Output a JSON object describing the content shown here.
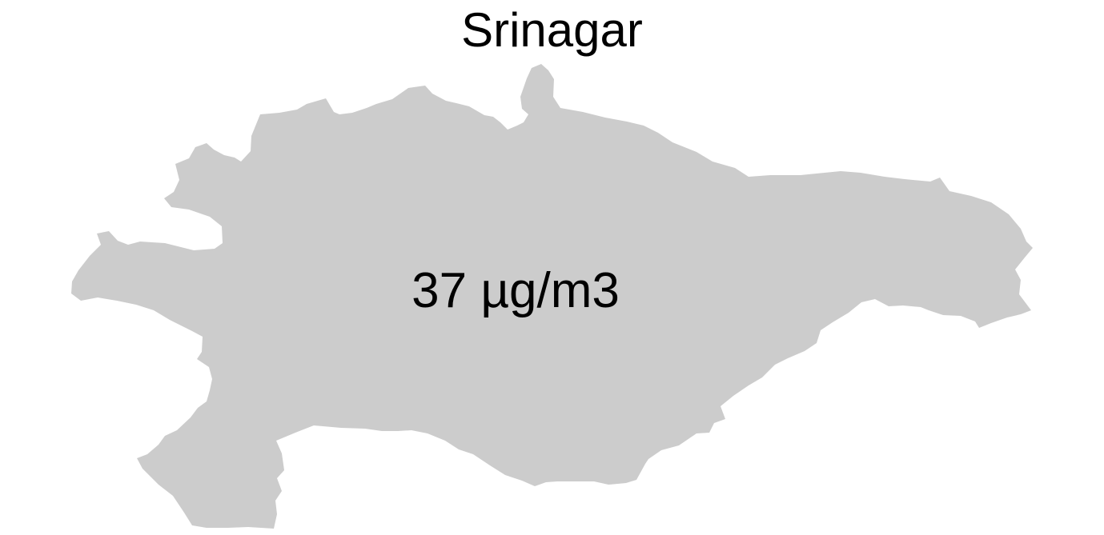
{
  "map": {
    "title": "Srinagar",
    "region_name": "Srinagar",
    "value_label": "37 µg/m3",
    "colors": {
      "region_fill": "#cccccc",
      "background": "#ffffff",
      "text": "#000000"
    }
  }
}
